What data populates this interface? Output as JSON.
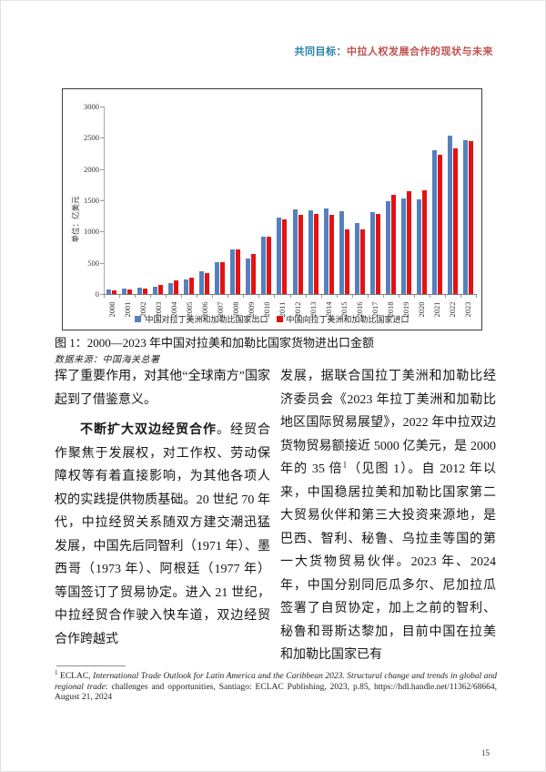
{
  "page": {
    "number": "15"
  },
  "header": {
    "prefix": "共同目标：",
    "title": "中拉人权发展合作的现状与未来",
    "prefix_color": "#2981a8",
    "title_color": "#c0504d"
  },
  "figure": {
    "caption": "图 1：2000—2023 年中国对拉美和加勒比国家货物进出口金额",
    "source": "数据来源：中国海关总署"
  },
  "chart_data": {
    "type": "bar",
    "title": "",
    "unit_label": "单位：亿美元",
    "categories": [
      "2000",
      "2001",
      "2002",
      "2003",
      "2004",
      "2005",
      "2006",
      "2007",
      "2008",
      "2009",
      "2010",
      "2011",
      "2012",
      "2013",
      "2014",
      "2015",
      "2016",
      "2017",
      "2018",
      "2019",
      "2020",
      "2021",
      "2022",
      "2023"
    ],
    "series": [
      {
        "name": "中国对拉丁美洲和加勒比国家出口",
        "color": "#5580be",
        "values": [
          72,
          82,
          95,
          119,
          182,
          237,
          360,
          515,
          715,
          571,
          918,
          1217,
          1352,
          1343,
          1363,
          1320,
          1139,
          1309,
          1488,
          1524,
          1510,
          2296,
          2529,
          2458
        ]
      },
      {
        "name": "中国向拉丁美洲和加勒比国家进口",
        "color": "#e51212",
        "values": [
          54,
          67,
          83,
          148,
          218,
          268,
          342,
          510,
          719,
          640,
          913,
          1193,
          1262,
          1275,
          1265,
          1035,
          1027,
          1279,
          1584,
          1651,
          1660,
          2226,
          2328,
          2449
        ]
      }
    ],
    "ylim": [
      0,
      3000
    ],
    "yticks": [
      0,
      500,
      1000,
      1500,
      2000,
      2500,
      3000
    ],
    "legend_position": "bottom",
    "grid": false
  },
  "body": {
    "left_col": {
      "para1": "挥了重要作用，对其他“全球南方”国家起到了借鉴意义。",
      "para2_lead": "不断扩大双边经贸合作",
      "para2_rest": "。经贸合作聚焦于发展权，对工作权、劳动保障权等有着直接影响，为其他各项人权的实践提供物质基础。20 世纪 70 年代，中拉经贸关系随双方建交潮迅猛发展，中国先后同智利（1971 年）、墨西哥（1973 年）、阿根廷（1977 年）等国签订了贸易协定。进入 21 世纪，中拉经贸合作驶入快车道，双边经贸合作跨越式"
    },
    "right_col": {
      "para1a": "发展，据联合国拉丁美洲和加勒比经济委员会《2023 年拉丁美洲和加勒比地区国际贸易展望》，2022 年中拉双边货物贸易额接近 5000 亿美元，是 2000 年的 35 倍",
      "footnote_ref": "1",
      "para1b": "（见图 1）。自 2012 年以来，中国稳居拉美和加勒比国家第二大贸易伙伴和第三大投资来源地，是巴西、智利、秘鲁、乌拉圭等国的第一大货物贸易伙伴。2023 年、2024 年，中国分别同厄瓜多尔、尼加拉瓜签署了自贸协定，加上之前的智利、秘鲁和哥斯达黎加，目前中国在拉美和加勒比国家已有"
    }
  },
  "footnote": {
    "marker": "1",
    "pre": " ECLAC, ",
    "italic": "International Trade Outlook for Latin America and the Caribbean 2023. Structural change and trends in global and regional trade",
    "post": ": challenges and opportunities, Santiago: ECLAC Publishing, 2023, p.85, https://hdl.handle.net/11362/68664, August 21, 2024"
  }
}
